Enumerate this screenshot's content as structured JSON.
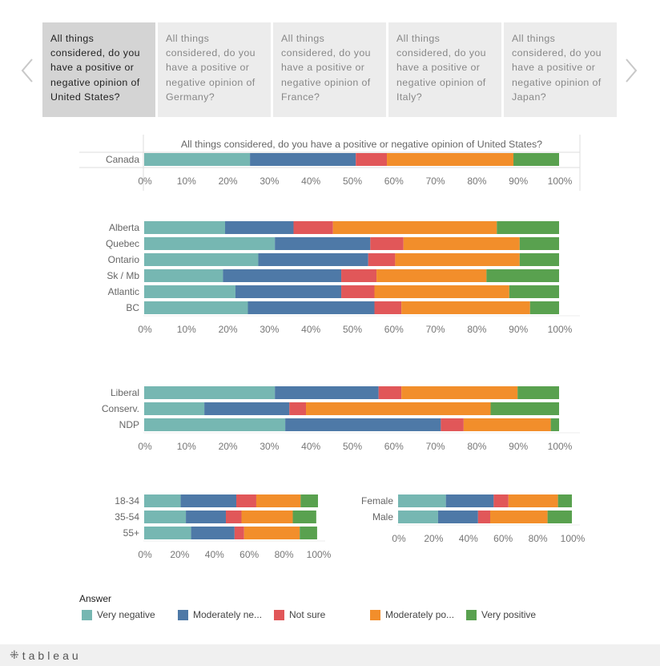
{
  "tabs": [
    {
      "label": "All things considered, do you have a positive or negative opinion of United States?",
      "active": true
    },
    {
      "label": "All things considered, do you have a positive or negative opinion of Germany?",
      "active": false
    },
    {
      "label": "All things considered, do you have a positive or negative opinion of France?",
      "active": false
    },
    {
      "label": "All things considered, do you have a positive or negative opinion of Italy?",
      "active": false
    },
    {
      "label": "All things considered, do you have a positive or negative opinion of Japan?",
      "active": false
    }
  ],
  "colors": {
    "very_negative": "#76b7b2",
    "moderately_negative": "#4e79a7",
    "not_sure": "#e15759",
    "moderately_positive": "#f28e2b",
    "very_positive": "#59a14f"
  },
  "chart_data": [
    {
      "type": "bar",
      "stacked": true,
      "orientation": "horizontal",
      "title": "All things considered, do you have a positive or negative opinion of United States?",
      "categories": [
        "Canada"
      ],
      "series": [
        {
          "name": "Very negative",
          "values": [
            25.5
          ]
        },
        {
          "name": "Moderately negative",
          "values": [
            25.5
          ]
        },
        {
          "name": "Not sure",
          "values": [
            7.5
          ]
        },
        {
          "name": "Moderately positive",
          "values": [
            30.5
          ]
        },
        {
          "name": "Very positive",
          "values": [
            11
          ]
        }
      ],
      "xticks": [
        "0%",
        "10%",
        "20%",
        "30%",
        "40%",
        "50%",
        "60%",
        "70%",
        "80%",
        "90%",
        "100%"
      ],
      "xlim": [
        0,
        100
      ]
    },
    {
      "type": "bar",
      "stacked": true,
      "orientation": "horizontal",
      "categories": [
        "Alberta",
        "Quebec",
        "Ontario",
        "Sk / Mb",
        "Atlantic",
        "BC"
      ],
      "series": [
        {
          "name": "Very negative",
          "values": [
            19.5,
            31.5,
            27.5,
            19,
            22,
            25
          ]
        },
        {
          "name": "Moderately negative",
          "values": [
            16.5,
            23,
            26.5,
            28.5,
            25.5,
            30.5
          ]
        },
        {
          "name": "Not sure",
          "values": [
            9.5,
            8,
            6.5,
            8.5,
            8,
            6.5
          ]
        },
        {
          "name": "Moderately positive",
          "values": [
            39.5,
            28,
            30,
            26.5,
            32.5,
            31
          ]
        },
        {
          "name": "Very positive",
          "values": [
            15,
            9.5,
            9.5,
            17.5,
            12,
            7
          ]
        }
      ],
      "xticks": [
        "0%",
        "10%",
        "20%",
        "30%",
        "40%",
        "50%",
        "60%",
        "70%",
        "80%",
        "90%",
        "100%"
      ],
      "xlim": [
        0,
        100
      ]
    },
    {
      "type": "bar",
      "stacked": true,
      "orientation": "horizontal",
      "categories": [
        "Liberal",
        "Conserv.",
        "NDP"
      ],
      "series": [
        {
          "name": "Very negative",
          "values": [
            31.5,
            14.5,
            34
          ]
        },
        {
          "name": "Moderately negative",
          "values": [
            25,
            20.5,
            37.5
          ]
        },
        {
          "name": "Not sure",
          "values": [
            5.5,
            4,
            5.5
          ]
        },
        {
          "name": "Moderately positive",
          "values": [
            28,
            44.5,
            21
          ]
        },
        {
          "name": "Very positive",
          "values": [
            10,
            16.5,
            2
          ]
        }
      ],
      "xticks": [
        "0%",
        "10%",
        "20%",
        "30%",
        "40%",
        "50%",
        "60%",
        "70%",
        "80%",
        "90%",
        "100%"
      ],
      "xlim": [
        0,
        100
      ]
    },
    {
      "type": "bar",
      "stacked": true,
      "orientation": "horizontal",
      "categories": [
        "18-34",
        "35-54",
        "55+"
      ],
      "series": [
        {
          "name": "Very negative",
          "values": [
            21,
            24,
            27
          ]
        },
        {
          "name": "Moderately negative",
          "values": [
            32,
            23,
            25
          ]
        },
        {
          "name": "Not sure",
          "values": [
            11.5,
            9,
            5.5
          ]
        },
        {
          "name": "Moderately positive",
          "values": [
            25.5,
            29.5,
            32
          ]
        },
        {
          "name": "Very positive",
          "values": [
            10,
            13.5,
            10
          ]
        }
      ],
      "xticks": [
        "0%",
        "20%",
        "40%",
        "60%",
        "80%",
        "100%"
      ],
      "xlim": [
        0,
        100
      ]
    },
    {
      "type": "bar",
      "stacked": true,
      "orientation": "horizontal",
      "categories": [
        "Female",
        "Male"
      ],
      "series": [
        {
          "name": "Very negative",
          "values": [
            27.5,
            23
          ]
        },
        {
          "name": "Moderately negative",
          "values": [
            27.5,
            23
          ]
        },
        {
          "name": "Not sure",
          "values": [
            8.5,
            7
          ]
        },
        {
          "name": "Moderately positive",
          "values": [
            28.5,
            33
          ]
        },
        {
          "name": "Very positive",
          "values": [
            8,
            14
          ]
        }
      ],
      "xticks": [
        "0%",
        "20%",
        "40%",
        "60%",
        "80%",
        "100%"
      ],
      "xlim": [
        0,
        100
      ]
    }
  ],
  "legend": {
    "title": "Answer",
    "items": [
      {
        "label": "Very negative",
        "color": "#76b7b2"
      },
      {
        "label": "Moderately ne...",
        "color": "#4e79a7"
      },
      {
        "label": "Not sure",
        "color": "#e15759"
      },
      {
        "label": "Moderately po...",
        "color": "#f28e2b"
      },
      {
        "label": "Very positive",
        "color": "#59a14f"
      }
    ]
  },
  "footer": {
    "logo_text": "tableau"
  }
}
